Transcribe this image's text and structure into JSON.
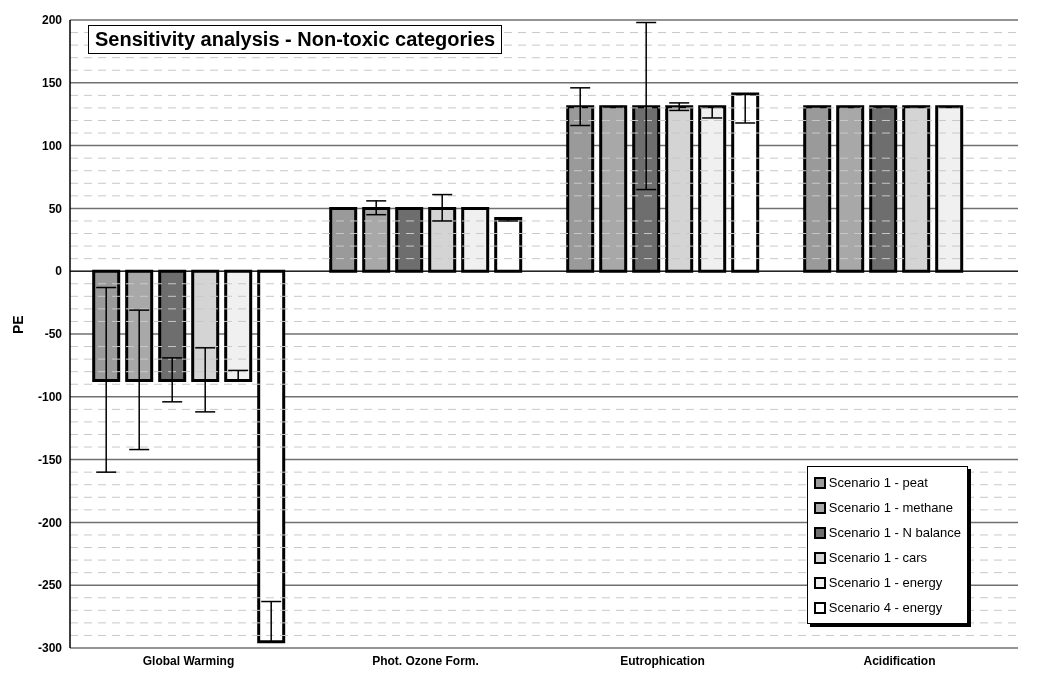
{
  "chart_data": {
    "type": "bar",
    "title": "Sensitivity analysis - Non-toxic categories",
    "ylabel": "PE",
    "categories": [
      "Global Warming",
      "Phot. Ozone Form.",
      "Eutrophication",
      "Acidification"
    ],
    "series": [
      {
        "name": "Scenario 1 - peat",
        "color": "#9a9a9a",
        "values": [
          -87,
          50,
          131,
          131
        ],
        "errors": [
          [
            -160,
            -13
          ],
          null,
          [
            116,
            146
          ],
          null
        ]
      },
      {
        "name": "Scenario 1 - methane",
        "color": "#a8a8a8",
        "values": [
          -87,
          50,
          131,
          131
        ],
        "errors": [
          [
            -142,
            -31
          ],
          [
            45,
            56
          ],
          null,
          null
        ]
      },
      {
        "name": "Scenario 1 - N balance",
        "color": "#6e6e6e",
        "values": [
          -87,
          50,
          131,
          131
        ],
        "errors": [
          [
            -104,
            -69
          ],
          null,
          [
            65,
            198
          ],
          null
        ]
      },
      {
        "name": "Scenario 1 - cars",
        "color": "#d4d4d4",
        "values": [
          -87,
          50,
          131,
          131
        ],
        "errors": [
          [
            -112,
            -61
          ],
          [
            40,
            61
          ],
          [
            128,
            134
          ],
          null
        ]
      },
      {
        "name": "Scenario 1 - energy",
        "color": "#f0f0f0",
        "values": [
          -87,
          50,
          131,
          131
        ],
        "errors": [
          [
            -87,
            -79
          ],
          null,
          [
            122,
            131
          ],
          null
        ]
      },
      {
        "name": "Scenario 4 - energy",
        "color": "#ffffff",
        "values": [
          -295,
          42,
          141,
          null
        ],
        "errors": [
          [
            -295,
            -263
          ],
          [
            40,
            42
          ],
          [
            118,
            141
          ],
          null
        ]
      }
    ],
    "ylim": [
      -300,
      200
    ],
    "yticks": [
      -300,
      -250,
      -200,
      -150,
      -100,
      -50,
      0,
      50,
      100,
      150,
      200
    ],
    "grid": "y",
    "legend": "bottom right"
  }
}
